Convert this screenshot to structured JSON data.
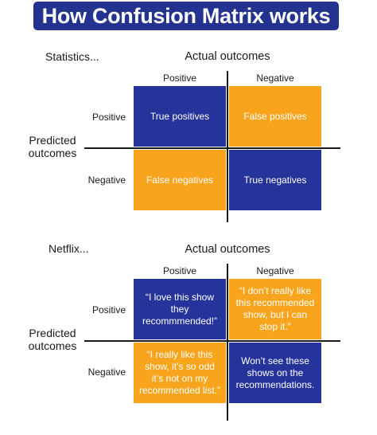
{
  "title": "How Confusion Matrix works",
  "colors": {
    "navy": "#25339a",
    "orange": "#f8a51d",
    "banner": "#24338f"
  },
  "statistics": {
    "section_label": "Statistics...",
    "actual_label": "Actual outcomes",
    "predicted_label_line1": "Predicted",
    "predicted_label_line2": "outcomes",
    "col_positive": "Positive",
    "col_negative": "Negative",
    "row_positive": "Positive",
    "row_negative": "Negative",
    "cells": {
      "tp": "True positives",
      "fp": "False positives",
      "fn": "False negatives",
      "tn": "True negatives"
    }
  },
  "netflix": {
    "section_label": "Netflix...",
    "actual_label": "Actual outcomes",
    "predicted_label_line1": "Predicted",
    "predicted_label_line2": "outcomes",
    "col_positive": "Positive",
    "col_negative": "Negative",
    "row_positive": "Positive",
    "row_negative": "Negative",
    "cells": {
      "tp": "“I love this show they recommmended!”",
      "fp": "“I don’t really like this recommended show, but I can stop it.”",
      "fn": "“I really like this show, it’s so odd it’s not on my recommended list.”",
      "tn": "Won’t see these shows on the recommendations."
    }
  }
}
